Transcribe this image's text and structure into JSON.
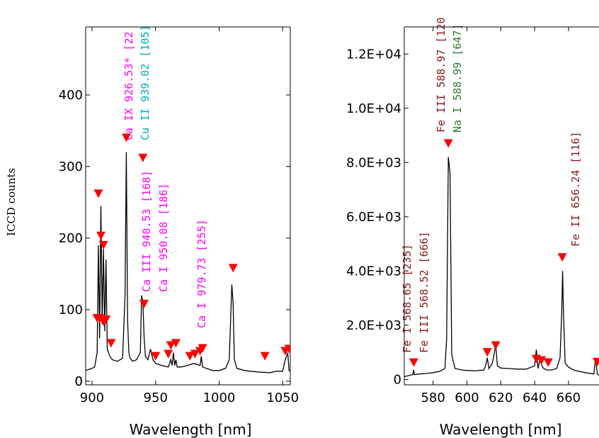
{
  "chart_data": [
    {
      "type": "line",
      "title": "",
      "xlabel": "Wavelength [nm]",
      "ylabel": "ICCD counts",
      "xlim": [
        895,
        1056
      ],
      "ylim": [
        -5,
        495
      ],
      "xticks": [
        900,
        950,
        1000,
        1050
      ],
      "yticks": [
        0,
        100,
        200,
        300,
        400
      ],
      "grid": false,
      "series": [
        {
          "x": [
            895,
            900,
            902,
            904,
            905,
            906,
            907,
            908,
            909,
            910,
            911,
            912,
            914,
            916,
            920,
            924,
            926,
            927,
            928,
            929,
            930,
            932,
            935,
            938,
            939,
            940,
            941,
            942,
            944,
            946,
            948,
            950,
            955,
            960,
            962,
            963,
            964,
            965,
            966,
            967,
            970,
            975,
            980,
            985,
            986,
            987,
            990,
            995,
            1000,
            1005,
            1008,
            1010,
            1011,
            1012,
            1014,
            1020,
            1030,
            1040,
            1045,
            1050,
            1052,
            1054,
            1055,
            1056
          ],
          "y": [
            15,
            18,
            20,
            40,
            190,
            60,
            245,
            80,
            185,
            70,
            170,
            45,
            35,
            30,
            28,
            32,
            120,
            320,
            85,
            40,
            32,
            28,
            30,
            40,
            120,
            110,
            60,
            35,
            30,
            45,
            30,
            25,
            22,
            20,
            30,
            22,
            40,
            22,
            30,
            20,
            20,
            22,
            25,
            22,
            35,
            20,
            18,
            15,
            15,
            18,
            30,
            135,
            110,
            30,
            18,
            15,
            13,
            12,
            14,
            14,
            30,
            40,
            15,
            14
          ]
        }
      ],
      "annotations": [
        {
          "text": "Ca IX  926.53* [22",
          "color": "#ff00ff"
        },
        {
          "text": "Cu II  939.02 [105]",
          "color": "#00b0b0"
        },
        {
          "text": "Ca III  940.53 [168]",
          "color": "#ff00ff"
        },
        {
          "text": "Ca I  950.08 [186]",
          "color": "#ff00ff"
        },
        {
          "text": "Ca I  979.73 [255]",
          "color": "#ff00ff"
        }
      ],
      "markers": [
        {
          "x": 905,
          "y": 262
        },
        {
          "x": 907,
          "y": 203
        },
        {
          "x": 909,
          "y": 190
        },
        {
          "x": 904,
          "y": 88
        },
        {
          "x": 906,
          "y": 88
        },
        {
          "x": 909,
          "y": 83
        },
        {
          "x": 911,
          "y": 86
        },
        {
          "x": 915,
          "y": 53
        },
        {
          "x": 927,
          "y": 340
        },
        {
          "x": 940,
          "y": 312
        },
        {
          "x": 941,
          "y": 108
        },
        {
          "x": 950,
          "y": 35
        },
        {
          "x": 960,
          "y": 38
        },
        {
          "x": 962,
          "y": 50
        },
        {
          "x": 966,
          "y": 53
        },
        {
          "x": 977,
          "y": 35
        },
        {
          "x": 981,
          "y": 38
        },
        {
          "x": 985,
          "y": 42
        },
        {
          "x": 987,
          "y": 46
        },
        {
          "x": 1011,
          "y": 158
        },
        {
          "x": 1036,
          "y": 35
        },
        {
          "x": 1052,
          "y": 42
        },
        {
          "x": 1055,
          "y": 45
        }
      ]
    },
    {
      "type": "line",
      "title": "",
      "xlabel": "Wavelength [nm]",
      "ylabel": "",
      "xlim": [
        563,
        678
      ],
      "ylim": [
        -200,
        13000
      ],
      "xticks": [
        580,
        600,
        620,
        640,
        660
      ],
      "yticks": [
        "2.0E+03",
        "4.0E+03",
        "6.0E+03",
        "8.0E+03",
        "1.0E+04",
        "1.2E+04"
      ],
      "ytick_values": [
        2000,
        4000,
        6000,
        8000,
        10000,
        12000
      ],
      "grid": false,
      "series": [
        {
          "x": [
            563,
            566,
            568,
            568.5,
            569,
            572,
            576,
            580,
            584,
            587,
            588,
            589,
            590,
            591,
            593,
            597,
            600,
            605,
            610,
            611,
            612,
            613,
            615,
            616,
            617,
            618,
            620,
            625,
            630,
            635,
            640,
            641,
            642,
            643,
            645,
            647,
            650,
            653,
            655,
            656,
            656.5,
            657,
            658,
            660,
            663,
            666,
            670,
            675,
            676,
            677,
            678
          ],
          "y": [
            100,
            150,
            180,
            350,
            180,
            200,
            220,
            250,
            300,
            400,
            1500,
            8200,
            7600,
            900,
            400,
            350,
            330,
            320,
            350,
            500,
            800,
            400,
            600,
            900,
            1300,
            500,
            420,
            400,
            380,
            380,
            500,
            1100,
            400,
            700,
            420,
            350,
            350,
            400,
            800,
            2500,
            4000,
            2500,
            600,
            450,
            350,
            300,
            250,
            200,
            800,
            200,
            150
          ]
        }
      ],
      "annotations": [
        {
          "text": "Fe III  588.97 [120",
          "color": "#8b1a1a"
        },
        {
          "text": "Na I  588.99 [647]",
          "color": "#2e7d32"
        },
        {
          "text": "Fe II  656.24 [116]",
          "color": "#8b1a1a"
        },
        {
          "text": "Fe I  568.65 [235]",
          "color": "#8b1a1a"
        },
        {
          "text": "Fe III  568.52 [666]",
          "color": "#8b1a1a"
        }
      ],
      "markers": [
        {
          "x": 568.6,
          "y": 620
        },
        {
          "x": 589,
          "y": 8700
        },
        {
          "x": 612,
          "y": 1000
        },
        {
          "x": 617,
          "y": 1250
        },
        {
          "x": 641,
          "y": 750
        },
        {
          "x": 644,
          "y": 700
        },
        {
          "x": 648,
          "y": 620
        },
        {
          "x": 656.3,
          "y": 4500
        },
        {
          "x": 677,
          "y": 640
        }
      ]
    }
  ],
  "colors": {
    "line": "#000000",
    "marker": "#ff0000"
  }
}
